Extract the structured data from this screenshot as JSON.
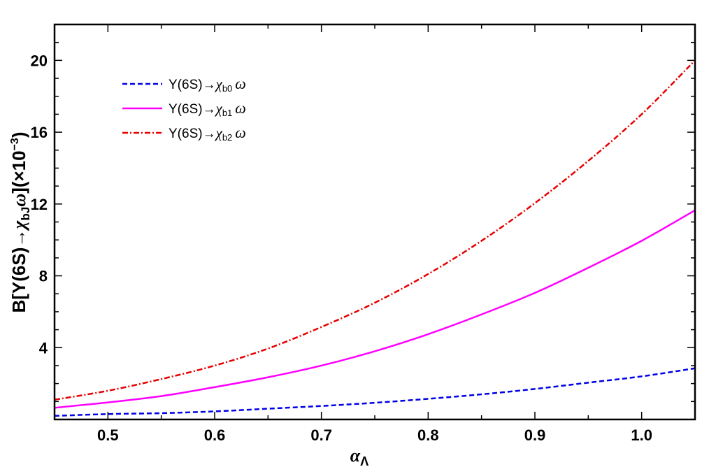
{
  "chart_data": {
    "type": "line",
    "xlabel": {
      "main": "α",
      "sub": "Λ"
    },
    "ylabel": {
      "prefix": "B[Y(6S)→",
      "chi": "χ",
      "sub": "bJ",
      "omega": "ω",
      "suffix": "](×10",
      "exp": "−3",
      "close": ")"
    },
    "xlim": [
      0.45,
      1.05
    ],
    "ylim": [
      0,
      22
    ],
    "x_ticks": [
      "0.5",
      "0.6",
      "0.7",
      "0.8",
      "0.9",
      "1.0"
    ],
    "y_ticks": [
      "4",
      "8",
      "12",
      "16",
      "20"
    ],
    "legend_position": "top-left",
    "series": [
      {
        "name": "Y(6S)→χb0 ω",
        "legend": {
          "prefix": "Y(6S)→",
          "chi": "χ",
          "sub": "b0",
          "omega": "ω"
        },
        "color": "#0000e6",
        "style": "dashed",
        "x": [
          0.45,
          0.5,
          0.55,
          0.6,
          0.65,
          0.7,
          0.75,
          0.8,
          0.85,
          0.9,
          0.95,
          1.0,
          1.05
        ],
        "y": [
          0.2,
          0.3,
          0.35,
          0.45,
          0.6,
          0.75,
          0.93,
          1.15,
          1.4,
          1.7,
          2.05,
          2.4,
          2.85
        ]
      },
      {
        "name": "Y(6S)→χb1 ω",
        "legend": {
          "prefix": "Y(6S)→",
          "chi": "χ",
          "sub": "b1",
          "omega": "ω"
        },
        "color": "#ff00ff",
        "style": "solid",
        "x": [
          0.45,
          0.5,
          0.55,
          0.6,
          0.65,
          0.7,
          0.75,
          0.8,
          0.85,
          0.9,
          0.95,
          1.0,
          1.05
        ],
        "y": [
          0.65,
          0.95,
          1.3,
          1.8,
          2.35,
          3.0,
          3.8,
          4.75,
          5.85,
          7.05,
          8.45,
          9.95,
          11.65
        ]
      },
      {
        "name": "Y(6S)→χb2 ω",
        "legend": {
          "prefix": "Y(6S)→",
          "chi": "χ",
          "sub": "b2",
          "omega": "ω"
        },
        "color": "#e60000",
        "style": "dashdot",
        "x": [
          0.45,
          0.5,
          0.55,
          0.6,
          0.65,
          0.7,
          0.75,
          0.8,
          0.85,
          0.9,
          0.95,
          1.0,
          1.05
        ],
        "y": [
          1.1,
          1.6,
          2.25,
          3.0,
          3.95,
          5.15,
          6.5,
          8.1,
          9.95,
          12.05,
          14.4,
          17.0,
          20.0
        ]
      }
    ]
  }
}
